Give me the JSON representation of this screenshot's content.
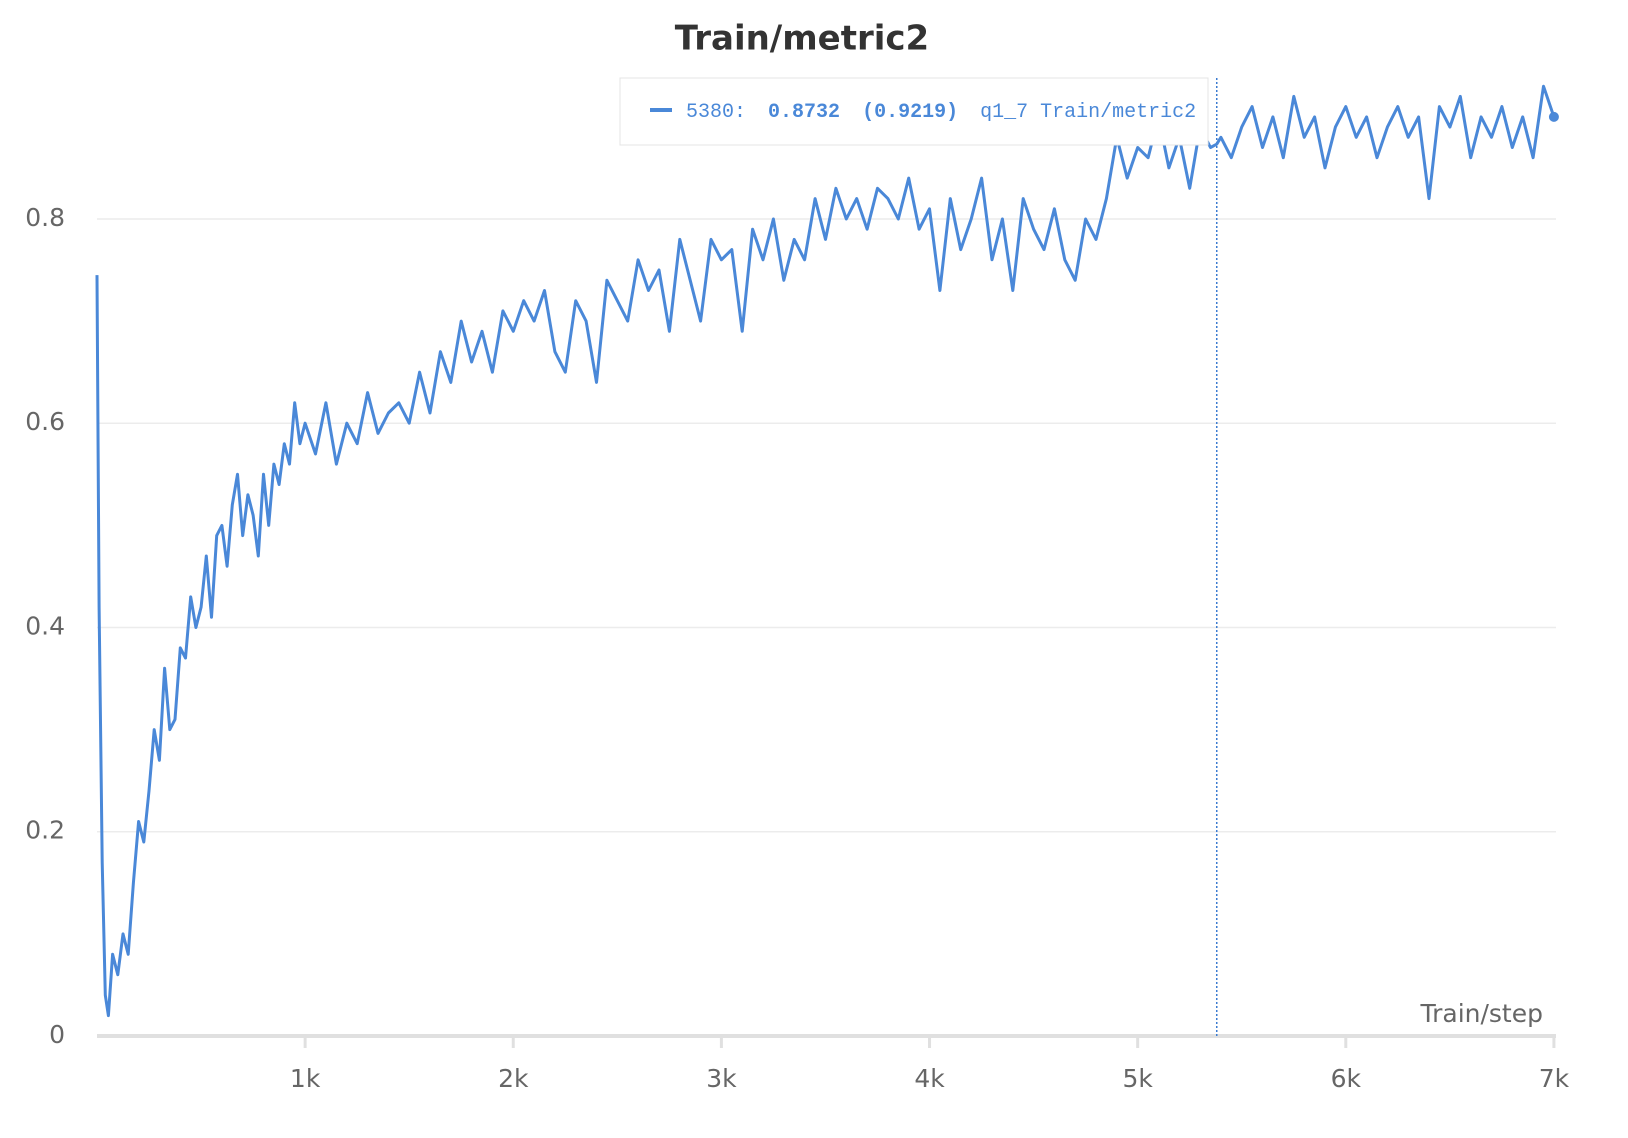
{
  "chart_data": {
    "type": "line",
    "title": "Train/metric2",
    "x_label": "Train/step",
    "x": [
      0,
      10,
      25,
      40,
      55,
      75,
      100,
      125,
      150,
      175,
      200,
      225,
      250,
      275,
      300,
      325,
      350,
      375,
      400,
      425,
      450,
      475,
      500,
      525,
      550,
      575,
      600,
      625,
      650,
      675,
      700,
      725,
      750,
      775,
      800,
      825,
      850,
      875,
      900,
      925,
      950,
      975,
      1000,
      1050,
      1100,
      1150,
      1200,
      1250,
      1300,
      1350,
      1400,
      1450,
      1500,
      1550,
      1600,
      1650,
      1700,
      1750,
      1800,
      1850,
      1900,
      1950,
      2000,
      2050,
      2100,
      2150,
      2200,
      2250,
      2300,
      2350,
      2400,
      2450,
      2500,
      2550,
      2600,
      2650,
      2700,
      2750,
      2800,
      2850,
      2900,
      2950,
      3000,
      3050,
      3100,
      3150,
      3200,
      3250,
      3300,
      3350,
      3400,
      3450,
      3500,
      3550,
      3600,
      3650,
      3700,
      3750,
      3800,
      3850,
      3900,
      3950,
      4000,
      4050,
      4100,
      4150,
      4200,
      4250,
      4300,
      4350,
      4400,
      4450,
      4500,
      4550,
      4600,
      4650,
      4700,
      4750,
      4800,
      4850,
      4900,
      4950,
      5000,
      5050,
      5100,
      5150,
      5200,
      5250,
      5300,
      5350,
      5380,
      5400,
      5450,
      5500,
      5550,
      5600,
      5650,
      5700,
      5750,
      5800,
      5850,
      5900,
      5950,
      6000,
      6050,
      6100,
      6150,
      6200,
      6250,
      6300,
      6350,
      6400,
      6450,
      6500,
      6550,
      6600,
      6650,
      6700,
      6750,
      6800,
      6850,
      6900,
      6950,
      7000
    ],
    "series": [
      {
        "name": "q1_7 Train/metric2",
        "color": "#4a88d8",
        "values": [
          0.745,
          0.42,
          0.17,
          0.04,
          0.02,
          0.08,
          0.06,
          0.1,
          0.08,
          0.15,
          0.21,
          0.19,
          0.24,
          0.3,
          0.27,
          0.36,
          0.3,
          0.31,
          0.38,
          0.37,
          0.43,
          0.4,
          0.42,
          0.47,
          0.41,
          0.49,
          0.5,
          0.46,
          0.52,
          0.55,
          0.49,
          0.53,
          0.51,
          0.47,
          0.55,
          0.5,
          0.56,
          0.54,
          0.58,
          0.56,
          0.62,
          0.58,
          0.6,
          0.57,
          0.62,
          0.56,
          0.6,
          0.58,
          0.63,
          0.59,
          0.61,
          0.62,
          0.6,
          0.65,
          0.61,
          0.67,
          0.64,
          0.7,
          0.66,
          0.69,
          0.65,
          0.71,
          0.69,
          0.72,
          0.7,
          0.73,
          0.67,
          0.65,
          0.72,
          0.7,
          0.64,
          0.74,
          0.72,
          0.7,
          0.76,
          0.73,
          0.75,
          0.69,
          0.78,
          0.74,
          0.7,
          0.78,
          0.76,
          0.77,
          0.69,
          0.79,
          0.76,
          0.8,
          0.74,
          0.78,
          0.76,
          0.82,
          0.78,
          0.83,
          0.8,
          0.82,
          0.79,
          0.83,
          0.82,
          0.8,
          0.84,
          0.79,
          0.81,
          0.73,
          0.82,
          0.77,
          0.8,
          0.84,
          0.76,
          0.8,
          0.73,
          0.82,
          0.79,
          0.77,
          0.81,
          0.76,
          0.74,
          0.8,
          0.78,
          0.82,
          0.88,
          0.84,
          0.87,
          0.86,
          0.9,
          0.85,
          0.88,
          0.83,
          0.89,
          0.87,
          0.8732,
          0.88,
          0.86,
          0.89,
          0.91,
          0.87,
          0.9,
          0.86,
          0.92,
          0.88,
          0.9,
          0.85,
          0.89,
          0.91,
          0.88,
          0.9,
          0.86,
          0.89,
          0.91,
          0.88,
          0.9,
          0.82,
          0.91,
          0.89,
          0.92,
          0.86,
          0.9,
          0.88,
          0.91,
          0.87,
          0.9,
          0.86,
          0.93,
          0.9
        ]
      }
    ],
    "xlim": [
      0,
      7010
    ],
    "ylim": [
      0,
      0.94
    ],
    "xticks": [
      {
        "value": 1000,
        "label": "1k"
      },
      {
        "value": 2000,
        "label": "2k"
      },
      {
        "value": 3000,
        "label": "3k"
      },
      {
        "value": 4000,
        "label": "4k"
      },
      {
        "value": 5000,
        "label": "5k"
      },
      {
        "value": 6000,
        "label": "6k"
      },
      {
        "value": 7000,
        "label": "7k"
      }
    ],
    "yticks": [
      0,
      0.2,
      0.4,
      0.6,
      0.8
    ],
    "grid": true,
    "hover_x": 5380,
    "tooltip": {
      "step": "5380:",
      "value": "0.8732",
      "max": "(0.9219)",
      "run": "q1_7 Train/metric2"
    }
  }
}
